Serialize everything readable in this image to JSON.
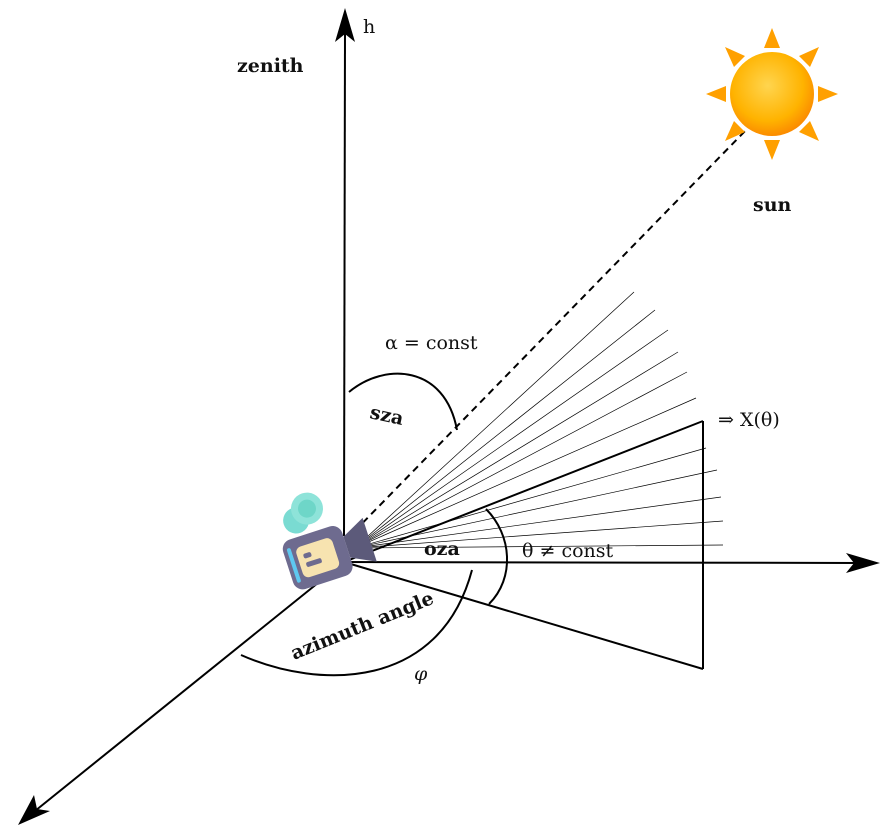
{
  "labels": {
    "h_axis": "h",
    "zenith": "zenith",
    "sun": "sun",
    "alpha_const": "α = const",
    "sza": "sza",
    "x_theta": "⇒ X(θ)",
    "oza": "oza",
    "theta_const": "θ ≠ const",
    "azimuth_angle": "azimuth angle",
    "phi": "φ"
  },
  "icons": {
    "sun": "sun-icon",
    "camera": "camera-icon"
  },
  "colors": {
    "sun_core": "#FFB300",
    "sun_rays": "#FFA000",
    "camera_body": "#6E6B8F",
    "camera_reels": "#6ED6C8",
    "camera_panel": "#F7E3B0",
    "line": "#000000"
  }
}
